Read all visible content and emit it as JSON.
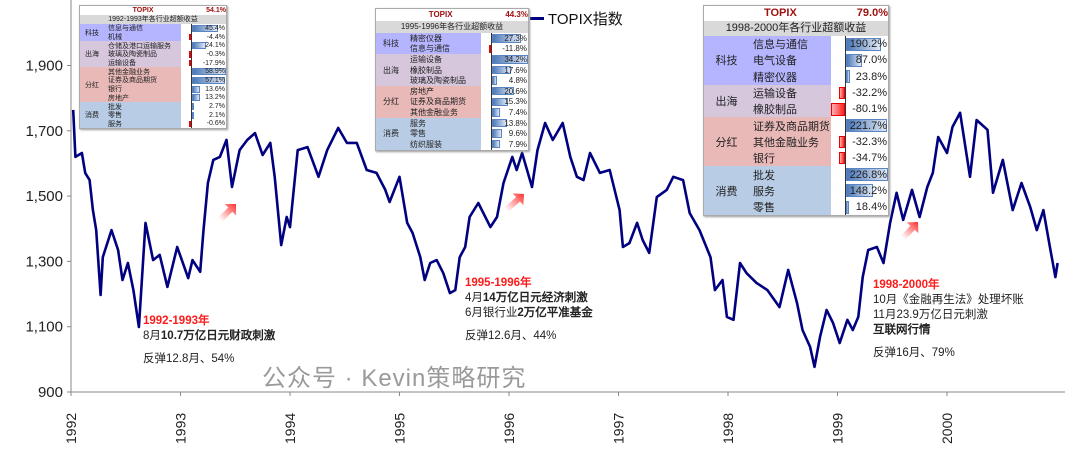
{
  "chart_data": {
    "type": "line",
    "title": "",
    "xlabel": "",
    "ylabel": "",
    "ylim": [
      900,
      2100
    ],
    "xlim": [
      1992,
      2001.1
    ],
    "yticks": [
      900,
      1100,
      1300,
      1500,
      1700,
      1900
    ],
    "ytick_labels": [
      "900",
      "1,100",
      "1,300",
      "1,500",
      "1,700",
      "1,900"
    ],
    "xticks": [
      1992,
      1993,
      1994,
      1995,
      1996,
      1997,
      1998,
      1999,
      2000
    ],
    "xtick_labels": [
      "1992",
      "1993",
      "1994",
      "1995",
      "1996",
      "1997",
      "1998",
      "1999",
      "2000"
    ],
    "legend": "top-center",
    "series": [
      {
        "name": "TOPIX指数",
        "color": "#000080",
        "points": [
          [
            1992.02,
            1764
          ],
          [
            1992.04,
            1620
          ],
          [
            1992.1,
            1632
          ],
          [
            1992.13,
            1571
          ],
          [
            1992.17,
            1549
          ],
          [
            1992.2,
            1457
          ],
          [
            1992.23,
            1396
          ],
          [
            1992.27,
            1197
          ],
          [
            1992.29,
            1313
          ],
          [
            1992.37,
            1396
          ],
          [
            1992.43,
            1335
          ],
          [
            1992.47,
            1243
          ],
          [
            1992.52,
            1295
          ],
          [
            1992.57,
            1212
          ],
          [
            1992.62,
            1099
          ],
          [
            1992.68,
            1418
          ],
          [
            1992.75,
            1304
          ],
          [
            1992.81,
            1320
          ],
          [
            1992.88,
            1222
          ],
          [
            1992.97,
            1344
          ],
          [
            1993.07,
            1249
          ],
          [
            1993.11,
            1304
          ],
          [
            1993.18,
            1268
          ],
          [
            1993.21,
            1396
          ],
          [
            1993.25,
            1540
          ],
          [
            1993.3,
            1611
          ],
          [
            1993.36,
            1620
          ],
          [
            1993.42,
            1672
          ],
          [
            1993.47,
            1528
          ],
          [
            1993.54,
            1641
          ],
          [
            1993.61,
            1672
          ],
          [
            1993.68,
            1693
          ],
          [
            1993.75,
            1626
          ],
          [
            1993.82,
            1663
          ],
          [
            1993.86,
            1559
          ],
          [
            1993.92,
            1350
          ],
          [
            1993.97,
            1436
          ],
          [
            1994.0,
            1405
          ],
          [
            1994.07,
            1641
          ],
          [
            1994.16,
            1650
          ],
          [
            1994.26,
            1559
          ],
          [
            1994.34,
            1641
          ],
          [
            1994.44,
            1709
          ],
          [
            1994.52,
            1663
          ],
          [
            1994.61,
            1663
          ],
          [
            1994.7,
            1580
          ],
          [
            1994.79,
            1571
          ],
          [
            1994.87,
            1519
          ],
          [
            1994.91,
            1482
          ],
          [
            1995.0,
            1559
          ],
          [
            1995.07,
            1418
          ],
          [
            1995.12,
            1387
          ],
          [
            1995.19,
            1313
          ],
          [
            1995.23,
            1243
          ],
          [
            1995.28,
            1295
          ],
          [
            1995.34,
            1304
          ],
          [
            1995.4,
            1264
          ],
          [
            1995.46,
            1203
          ],
          [
            1995.51,
            1212
          ],
          [
            1995.55,
            1313
          ],
          [
            1995.6,
            1344
          ],
          [
            1995.64,
            1436
          ],
          [
            1995.72,
            1479
          ],
          [
            1995.83,
            1405
          ],
          [
            1995.89,
            1436
          ],
          [
            1995.95,
            1540
          ],
          [
            1996.03,
            1620
          ],
          [
            1996.07,
            1580
          ],
          [
            1996.12,
            1632
          ],
          [
            1996.21,
            1528
          ],
          [
            1996.26,
            1641
          ],
          [
            1996.33,
            1724
          ],
          [
            1996.4,
            1672
          ],
          [
            1996.49,
            1724
          ],
          [
            1996.56,
            1620
          ],
          [
            1996.62,
            1559
          ],
          [
            1996.68,
            1549
          ],
          [
            1996.74,
            1632
          ],
          [
            1996.83,
            1571
          ],
          [
            1996.92,
            1580
          ],
          [
            1997.01,
            1457
          ],
          [
            1997.04,
            1344
          ],
          [
            1997.1,
            1356
          ],
          [
            1997.17,
            1418
          ],
          [
            1997.22,
            1366
          ],
          [
            1997.28,
            1326
          ],
          [
            1997.35,
            1497
          ],
          [
            1997.44,
            1519
          ],
          [
            1997.5,
            1559
          ],
          [
            1997.59,
            1549
          ],
          [
            1997.65,
            1448
          ],
          [
            1997.74,
            1396
          ],
          [
            1997.84,
            1313
          ],
          [
            1997.88,
            1212
          ],
          [
            1997.95,
            1243
          ],
          [
            1997.99,
            1130
          ],
          [
            1998.05,
            1121
          ],
          [
            1998.11,
            1295
          ],
          [
            1998.17,
            1264
          ],
          [
            1998.26,
            1234
          ],
          [
            1998.36,
            1212
          ],
          [
            1998.47,
            1160
          ],
          [
            1998.55,
            1274
          ],
          [
            1998.63,
            1173
          ],
          [
            1998.68,
            1090
          ],
          [
            1998.75,
            1038
          ],
          [
            1998.79,
            977
          ],
          [
            1998.84,
            1068
          ],
          [
            1998.9,
            1151
          ],
          [
            1998.96,
            1111
          ],
          [
            1999.02,
            1050
          ],
          [
            1999.09,
            1121
          ],
          [
            1999.14,
            1090
          ],
          [
            1999.19,
            1130
          ],
          [
            1999.23,
            1252
          ],
          [
            1999.28,
            1335
          ],
          [
            1999.36,
            1344
          ],
          [
            1999.42,
            1295
          ],
          [
            1999.48,
            1418
          ],
          [
            1999.54,
            1510
          ],
          [
            1999.6,
            1427
          ],
          [
            1999.68,
            1519
          ],
          [
            1999.75,
            1436
          ],
          [
            1999.82,
            1528
          ],
          [
            1999.87,
            1571
          ],
          [
            1999.92,
            1681
          ],
          [
            2000.0,
            1632
          ],
          [
            2000.05,
            1712
          ],
          [
            2000.12,
            1755
          ],
          [
            2000.21,
            1559
          ],
          [
            2000.27,
            1733
          ],
          [
            2000.37,
            1703
          ],
          [
            2000.42,
            1510
          ],
          [
            2000.51,
            1611
          ],
          [
            2000.6,
            1457
          ],
          [
            2000.68,
            1540
          ],
          [
            2000.76,
            1467
          ],
          [
            2000.82,
            1396
          ],
          [
            2000.88,
            1457
          ],
          [
            2000.94,
            1344
          ],
          [
            2000.99,
            1252
          ],
          [
            2001.01,
            1295
          ]
        ]
      }
    ]
  },
  "legend": {
    "label": "TOPIX指数"
  },
  "insets": [
    {
      "topix_label": "TOPIX",
      "topix_value": "54.1%",
      "subtitle": "1992-1993年各行业超额收益",
      "groups": [
        {
          "name": "科技",
          "color": "#b4b4ff",
          "items": [
            {
              "name": "信息与通信",
              "value": "45.4%"
            },
            {
              "name": "机械",
              "value": "-4.4%"
            }
          ]
        },
        {
          "name": "出海",
          "color": "#d6c7dd",
          "items": [
            {
              "name": "仓储及港口运输服务",
              "value": "24.1%"
            },
            {
              "name": "玻璃及陶瓷制品",
              "value": "-0.3%"
            },
            {
              "name": "运输设备",
              "value": "-17.9%"
            }
          ]
        },
        {
          "name": "分红",
          "color": "#e9b9b8",
          "items": [
            {
              "name": "其他金融业务",
              "value": "58.9%"
            },
            {
              "name": "证券及商品期货",
              "value": "57.1%"
            },
            {
              "name": "银行",
              "value": "13.6%"
            },
            {
              "name": "房地产",
              "value": "13.2%"
            }
          ]
        },
        {
          "name": "消费",
          "color": "#b8cde5",
          "items": [
            {
              "name": "批发",
              "value": "2.7%"
            },
            {
              "name": "零售",
              "value": "2.1%"
            },
            {
              "name": "服务",
              "value": "-0.6%"
            }
          ]
        }
      ]
    },
    {
      "topix_label": "TOPIX",
      "topix_value": "44.3%",
      "subtitle": "1995-1996年各行业超额收益",
      "groups": [
        {
          "name": "科技",
          "color": "#b4b4ff",
          "items": [
            {
              "name": "精密仪器",
              "value": "27.3%"
            },
            {
              "name": "信息与通信",
              "value": "-11.8%"
            }
          ]
        },
        {
          "name": "出海",
          "color": "#d6c7dd",
          "items": [
            {
              "name": "运输设备",
              "value": "34.2%"
            },
            {
              "name": "橡胶制品",
              "value": "17.6%"
            },
            {
              "name": "玻璃及陶瓷制品",
              "value": "4.8%"
            }
          ]
        },
        {
          "name": "分红",
          "color": "#e9b9b8",
          "items": [
            {
              "name": "房地产",
              "value": "20.6%"
            },
            {
              "name": "证券及商品期货",
              "value": "15.3%"
            },
            {
              "name": "其他金融业务",
              "value": "7.4%"
            }
          ]
        },
        {
          "name": "消费",
          "color": "#b8cde5",
          "items": [
            {
              "name": "服务",
              "value": "13.8%"
            },
            {
              "name": "零售",
              "value": "9.6%"
            },
            {
              "name": "纺织服装",
              "value": "7.9%"
            }
          ]
        }
      ]
    },
    {
      "topix_label": "TOPIX",
      "topix_value": "79.0%",
      "subtitle": "1998-2000年各行业超额收益",
      "groups": [
        {
          "name": "科技",
          "color": "#b4b4ff",
          "items": [
            {
              "name": "信息与通信",
              "value": "190.2%"
            },
            {
              "name": "电气设备",
              "value": "87.0%"
            },
            {
              "name": "精密仪器",
              "value": "23.8%"
            }
          ]
        },
        {
          "name": "出海",
          "color": "#d6c7dd",
          "items": [
            {
              "name": "运输设备",
              "value": "-32.2%"
            },
            {
              "name": "橡胶制品",
              "value": "-80.1%"
            }
          ]
        },
        {
          "name": "分红",
          "color": "#e9b9b8",
          "items": [
            {
              "name": "证券及商品期货",
              "value": "221.7%"
            },
            {
              "name": "其他金融业务",
              "value": "-32.3%"
            },
            {
              "name": "银行",
              "value": "-34.7%"
            }
          ]
        },
        {
          "name": "消费",
          "color": "#b8cde5",
          "items": [
            {
              "name": "批发",
              "value": "226.8%"
            },
            {
              "name": "服务",
              "value": "148.2%"
            },
            {
              "name": "零售",
              "value": "18.4%"
            }
          ]
        }
      ]
    }
  ],
  "annotations": {
    "a1": {
      "period": "1992-1993年",
      "l1a": "8月",
      "l1b": "10.7万亿日元财政刺激",
      "rebound": "反弹12.8月、54%"
    },
    "a2": {
      "period": "1995-1996年",
      "l1a": "4月",
      "l1b": "14万亿日元经济刺激",
      "l2a": "6月银行业",
      "l2b": "2万亿平准基金",
      "rebound": "反弹12.6月、44%"
    },
    "a3": {
      "period": "1998-2000年",
      "l1": "10月《金融再生法》处理坏账",
      "l2": "11月23.9万亿日元刺激",
      "l3": "互联网行情",
      "rebound": "反弹16月、79%"
    }
  },
  "watermark": "公众号 · Kevin策略研究",
  "colors": {
    "line": "#000080",
    "highlight": "#ff1a1a",
    "positive_bar": "#4a78b8",
    "negative_bar": "#ff2020"
  }
}
